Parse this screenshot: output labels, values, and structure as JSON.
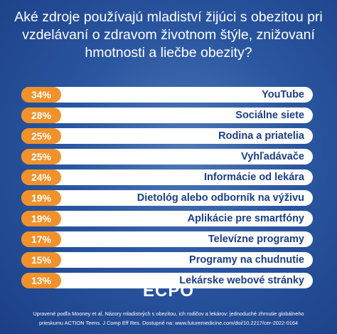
{
  "title": "Aké zdroje používajú mladiství žijúci s obezitou pri vzdelávaní  o zdravom životnom štýle, znižovaní hmotnosti a liečbe obezity?",
  "rows": [
    {
      "share": "34%",
      "label": "YouTube"
    },
    {
      "share": "28%",
      "label": "Sociálne siete"
    },
    {
      "share": "25%",
      "label": "Rodina a priatelia"
    },
    {
      "share": "25%",
      "label": "Vyhľadávače"
    },
    {
      "share": "24%",
      "label": "Informácie od lekára"
    },
    {
      "share": "19%",
      "label": "Dietológ alebo odborník na výživu"
    },
    {
      "share": "19%",
      "label": "Aplikácie pre smartfóny"
    },
    {
      "share": "17%",
      "label": "Televízne programy"
    },
    {
      "share": "15%",
      "label": "Programy na chudnutie"
    },
    {
      "share": "13%",
      "label": "Lekárske webové stránky"
    }
  ],
  "logo": "ECPO",
  "source": [
    "Upravené podľa Mooney et al. Názory mladistvých s obezitou, ich rodičov a lekárov: jednoduché zhrnutie globálneho",
    "prieskumu ACTION Teens. J Comp Eff Res. Dostupné na: www.futuremedicine.com/doi/10.2217/cer-2022-0164"
  ]
}
